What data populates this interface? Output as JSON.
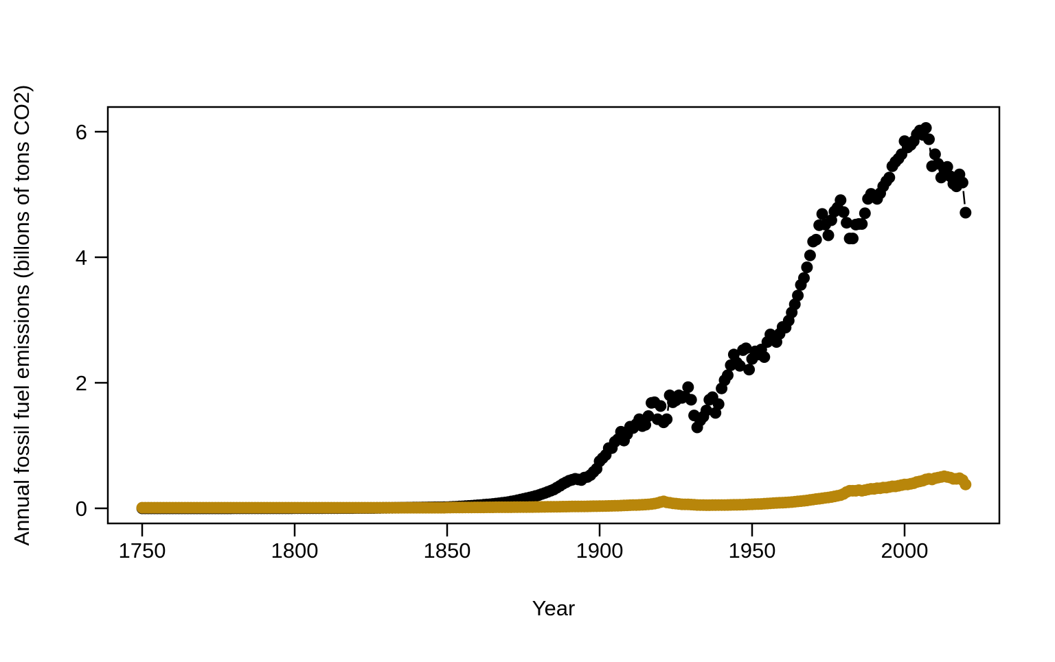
{
  "figure": {
    "background": "#ffffff",
    "plot_border_color": "#000000"
  },
  "chart_data": {
    "type": "scatter",
    "title": "",
    "xlabel": "Year",
    "ylabel": "Annual fossil fuel emissions (billons of tons CO2)",
    "x_ticks": [
      1750,
      1800,
      1850,
      1900,
      1950,
      2000
    ],
    "y_ticks": [
      0,
      2,
      4,
      6
    ],
    "xlim": [
      1738,
      2032
    ],
    "ylim": [
      -0.24,
      6.4
    ],
    "grid": false,
    "legend_position": "none",
    "marker": "filled-circle (pch 19) with short connecting segments (R type='b')",
    "series": [
      {
        "name": "black-series",
        "color": "#000000",
        "start_year": 1750,
        "values": [
          0,
          0,
          0,
          0,
          0,
          0,
          0,
          0,
          0,
          0,
          0,
          0,
          0,
          0,
          0,
          0,
          0,
          0,
          0,
          0,
          0,
          0,
          0,
          0,
          0,
          0,
          0,
          0,
          0,
          0,
          0.001,
          0.001,
          0.001,
          0.001,
          0.001,
          0.001,
          0.001,
          0.001,
          0.001,
          0.001,
          0.001,
          0.001,
          0.001,
          0.001,
          0.001,
          0.001,
          0.001,
          0.001,
          0.001,
          0.001,
          0.002,
          0.002,
          0.002,
          0.002,
          0.002,
          0.002,
          0.002,
          0.002,
          0.002,
          0.002,
          0.003,
          0.003,
          0.003,
          0.003,
          0.003,
          0.004,
          0.004,
          0.004,
          0.004,
          0.004,
          0.005,
          0.005,
          0.005,
          0.005,
          0.005,
          0.006,
          0.006,
          0.007,
          0.007,
          0.008,
          0.008,
          0.009,
          0.009,
          0.01,
          0.01,
          0.011,
          0.011,
          0.012,
          0.012,
          0.013,
          0.013,
          0.014,
          0.015,
          0.015,
          0.016,
          0.016,
          0.017,
          0.018,
          0.018,
          0.019,
          0.02,
          0.022,
          0.024,
          0.026,
          0.029,
          0.032,
          0.035,
          0.038,
          0.041,
          0.045,
          0.049,
          0.053,
          0.057,
          0.061,
          0.065,
          0.07,
          0.075,
          0.081,
          0.087,
          0.093,
          0.1,
          0.109,
          0.118,
          0.128,
          0.139,
          0.15,
          0.161,
          0.172,
          0.184,
          0.197,
          0.21,
          0.227,
          0.244,
          0.262,
          0.281,
          0.3,
          0.329,
          0.359,
          0.39,
          0.415,
          0.44,
          0.455,
          0.47,
          0.46,
          0.45,
          0.49,
          0.5,
          0.53,
          0.58,
          0.63,
          0.75,
          0.8,
          0.85,
          0.96,
          0.96,
          1.06,
          1.1,
          1.22,
          1.08,
          1.18,
          1.3,
          1.28,
          1.34,
          1.42,
          1.31,
          1.33,
          1.47,
          1.68,
          1.69,
          1.42,
          1.63,
          1.37,
          1.42,
          1.8,
          1.69,
          1.72,
          1.8,
          1.76,
          1.78,
          1.93,
          1.73,
          1.48,
          1.29,
          1.4,
          1.46,
          1.56,
          1.73,
          1.77,
          1.52,
          1.66,
          1.91,
          2.04,
          2.12,
          2.28,
          2.45,
          2.32,
          2.27,
          2.52,
          2.55,
          2.21,
          2.38,
          2.5,
          2.45,
          2.53,
          2.41,
          2.65,
          2.77,
          2.73,
          2.65,
          2.78,
          2.89,
          2.88,
          2.99,
          3.12,
          3.25,
          3.39,
          3.56,
          3.67,
          3.84,
          4.03,
          4.25,
          4.28,
          4.51,
          4.69,
          4.52,
          4.35,
          4.59,
          4.73,
          4.79,
          4.91,
          4.72,
          4.55,
          4.3,
          4.3,
          4.52,
          4.53,
          4.53,
          4.7,
          4.93,
          5.01,
          4.98,
          4.93,
          5.02,
          5.13,
          5.21,
          5.27,
          5.45,
          5.52,
          5.57,
          5.64,
          5.85,
          5.75,
          5.79,
          5.85,
          5.96,
          6.02,
          5.95,
          6.06,
          5.88,
          5.45,
          5.64,
          5.49,
          5.27,
          5.4,
          5.44,
          5.29,
          5.17,
          5.13,
          5.32,
          5.19,
          4.71
        ]
      },
      {
        "name": "goldenrod-series",
        "color": "#B8860B",
        "start_year": 1750,
        "values": [
          0.01,
          0.01,
          0.01,
          0.01,
          0.01,
          0.01,
          0.01,
          0.01,
          0.01,
          0.01,
          0.01,
          0.01,
          0.01,
          0.01,
          0.01,
          0.01,
          0.01,
          0.01,
          0.01,
          0.01,
          0.01,
          0.01,
          0.01,
          0.01,
          0.01,
          0.01,
          0.01,
          0.01,
          0.01,
          0.01,
          0.01,
          0.01,
          0.01,
          0.01,
          0.01,
          0.01,
          0.01,
          0.01,
          0.01,
          0.01,
          0.01,
          0.01,
          0.01,
          0.01,
          0.01,
          0.01,
          0.01,
          0.01,
          0.01,
          0.01,
          0.01,
          0.01,
          0.01,
          0.01,
          0.01,
          0.01,
          0.01,
          0.01,
          0.01,
          0.01,
          0.01,
          0.01,
          0.01,
          0.01,
          0.01,
          0.01,
          0.01,
          0.01,
          0.01,
          0.01,
          0.01,
          0.01,
          0.01,
          0.01,
          0.01,
          0.01,
          0.01,
          0.01,
          0.01,
          0.01,
          0.01,
          0.01,
          0.01,
          0.01,
          0.01,
          0.01,
          0.01,
          0.01,
          0.01,
          0.01,
          0.01,
          0.01,
          0.01,
          0.01,
          0.01,
          0.01,
          0.01,
          0.01,
          0.01,
          0.01,
          0.012,
          0.012,
          0.013,
          0.013,
          0.013,
          0.013,
          0.014,
          0.014,
          0.014,
          0.015,
          0.015,
          0.015,
          0.015,
          0.016,
          0.016,
          0.016,
          0.017,
          0.017,
          0.017,
          0.018,
          0.018,
          0.018,
          0.019,
          0.019,
          0.02,
          0.02,
          0.02,
          0.021,
          0.021,
          0.022,
          0.022,
          0.023,
          0.023,
          0.024,
          0.024,
          0.025,
          0.025,
          0.026,
          0.027,
          0.027,
          0.028,
          0.029,
          0.029,
          0.03,
          0.031,
          0.031,
          0.032,
          0.033,
          0.034,
          0.034,
          0.035,
          0.036,
          0.037,
          0.038,
          0.039,
          0.04,
          0.042,
          0.044,
          0.046,
          0.048,
          0.05,
          0.052,
          0.053,
          0.055,
          0.057,
          0.06,
          0.063,
          0.068,
          0.075,
          0.085,
          0.1,
          0.11,
          0.095,
          0.088,
          0.08,
          0.075,
          0.07,
          0.065,
          0.063,
          0.062,
          0.06,
          0.057,
          0.054,
          0.052,
          0.051,
          0.05,
          0.05,
          0.051,
          0.051,
          0.052,
          0.052,
          0.053,
          0.054,
          0.055,
          0.056,
          0.056,
          0.057,
          0.058,
          0.06,
          0.062,
          0.065,
          0.067,
          0.068,
          0.07,
          0.073,
          0.076,
          0.08,
          0.083,
          0.086,
          0.088,
          0.09,
          0.093,
          0.096,
          0.1,
          0.105,
          0.11,
          0.115,
          0.12,
          0.126,
          0.133,
          0.14,
          0.147,
          0.153,
          0.16,
          0.167,
          0.173,
          0.18,
          0.19,
          0.2,
          0.21,
          0.23,
          0.26,
          0.28,
          0.28,
          0.28,
          0.29,
          0.28,
          0.29,
          0.3,
          0.31,
          0.31,
          0.32,
          0.32,
          0.33,
          0.33,
          0.34,
          0.35,
          0.35,
          0.36,
          0.37,
          0.38,
          0.38,
          0.39,
          0.4,
          0.42,
          0.43,
          0.44,
          0.46,
          0.47,
          0.46,
          0.48,
          0.49,
          0.5,
          0.51,
          0.5,
          0.49,
          0.47,
          0.47,
          0.48,
          0.45,
          0.38
        ]
      }
    ]
  }
}
